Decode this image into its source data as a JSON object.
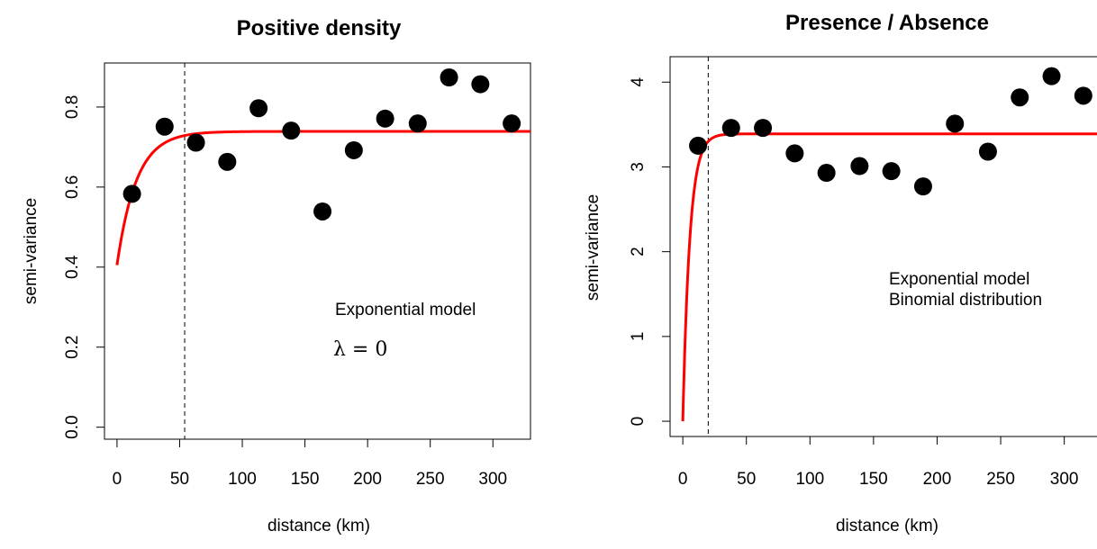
{
  "chart_data": [
    {
      "type": "scatter",
      "title": "Positive density",
      "xlabel": "distance  (km)",
      "ylabel": "semi-variance",
      "xlim": [
        -10,
        330
      ],
      "ylim": [
        -0.03,
        0.91
      ],
      "xticks": [
        0,
        50,
        100,
        150,
        200,
        250,
        300
      ],
      "xtick_labels": [
        "0",
        "50",
        "100",
        "150",
        "200",
        "250",
        "300"
      ],
      "yticks": [
        0.0,
        0.2,
        0.4,
        0.6,
        0.8
      ],
      "ytick_labels": [
        "0.0",
        "0.2",
        "0.4",
        "0.6",
        "0.8"
      ],
      "points": {
        "x": [
          12,
          38,
          63,
          88,
          113,
          139,
          164,
          189,
          214,
          240,
          265,
          290,
          315
        ],
        "y": [
          0.583,
          0.751,
          0.711,
          0.663,
          0.797,
          0.741,
          0.539,
          0.692,
          0.771,
          0.759,
          0.874,
          0.857,
          0.759
        ]
      },
      "model": {
        "name": "Exponential model",
        "nugget": 0.405,
        "sill": 0.739,
        "range_param": 15.5,
        "color": "#ff0000"
      },
      "vline_x": 54,
      "annotations": [
        "Exponential model",
        "λ = 0"
      ],
      "grid": false
    },
    {
      "type": "scatter",
      "title": "Presence / Absence",
      "xlabel": "distance  (km)",
      "ylabel": "semi-variance",
      "xlim": [
        -10,
        330
      ],
      "ylim": [
        -0.18,
        4.3
      ],
      "xticks": [
        0,
        50,
        100,
        150,
        200,
        250,
        300
      ],
      "xtick_labels": [
        "0",
        "50",
        "100",
        "150",
        "200",
        "250",
        "300"
      ],
      "yticks": [
        0,
        1,
        2,
        3,
        4
      ],
      "ytick_labels": [
        "0",
        "1",
        "2",
        "3",
        "4"
      ],
      "points": {
        "x": [
          12,
          38,
          63,
          88,
          113,
          139,
          164,
          189,
          214,
          240,
          265,
          290,
          315
        ],
        "y": [
          3.25,
          3.46,
          3.46,
          3.16,
          2.93,
          3.01,
          2.95,
          2.77,
          3.51,
          3.18,
          3.82,
          4.07,
          3.84
        ]
      },
      "model": {
        "name": "Exponential model",
        "nugget": 0.0,
        "sill": 3.39,
        "range_param": 5.5,
        "color": "#ff0000"
      },
      "vline_x": 20,
      "annotations": [
        "Exponential model",
        "Binomial distribution"
      ],
      "grid": false
    }
  ]
}
